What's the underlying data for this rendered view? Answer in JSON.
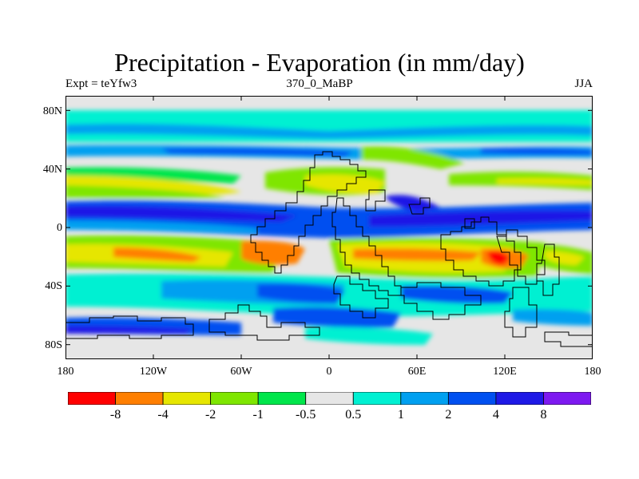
{
  "title": "Precipitation - Evaporation (in mm/day)",
  "left_subtitle": "Expt = teYfw3",
  "center_subtitle": "370_0_MaBP",
  "right_subtitle": "JJA",
  "y_ticks": [
    "80N",
    "40N",
    "0",
    "40S",
    "80S"
  ],
  "x_ticks": [
    "180",
    "120W",
    "60W",
    "0",
    "60E",
    "120E",
    "180"
  ],
  "colorbar": {
    "colors": [
      "#ff0000",
      "#ff7f00",
      "#e6e600",
      "#7fe600",
      "#00e64b",
      "#e6e6e6",
      "#00f0d2",
      "#00a0f0",
      "#0050f0",
      "#1e19e6",
      "#7d19f0"
    ],
    "labels": [
      "-8",
      "-4",
      "-2",
      "-1",
      "-0.5",
      "0.5",
      "1",
      "2",
      "4",
      "8"
    ]
  },
  "map": {
    "background_color": "#e6e6e6",
    "coastline_color": "#000000"
  }
}
